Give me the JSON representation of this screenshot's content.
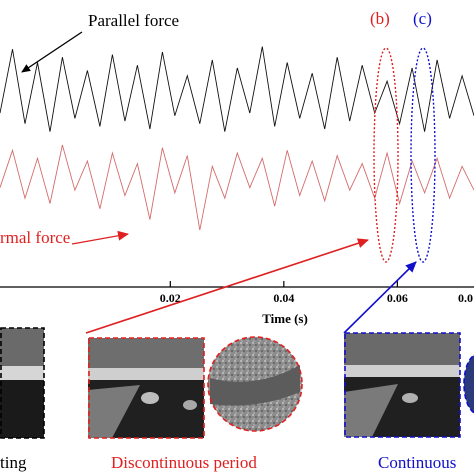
{
  "chart_data": {
    "type": "line",
    "title": "",
    "xlabel": "Time (s)",
    "ylabel": "",
    "xlim": [
      -0.01,
      0.0735
    ],
    "ylim": [
      0,
      1
    ],
    "x_ticks": [
      "0.02",
      "0.04",
      "0.06",
      "0.0"
    ],
    "series": [
      {
        "name": "Parallel force",
        "color": "#111111",
        "x": [
          -0.01,
          -0.0078,
          -0.0056,
          -0.0034,
          -0.0012,
          0.001,
          0.0032,
          0.0054,
          0.0076,
          0.0098,
          0.012,
          0.0142,
          0.0164,
          0.0186,
          0.0208,
          0.023,
          0.0252,
          0.0274,
          0.0296,
          0.0318,
          0.034,
          0.0362,
          0.0384,
          0.0406,
          0.0428,
          0.045,
          0.0472,
          0.0494,
          0.0516,
          0.0538,
          0.056,
          0.0582,
          0.0604,
          0.0626,
          0.0648,
          0.067,
          0.0692,
          0.0714,
          0.0735
        ],
        "values": [
          0.62,
          0.86,
          0.58,
          0.81,
          0.55,
          0.83,
          0.6,
          0.78,
          0.57,
          0.84,
          0.59,
          0.8,
          0.56,
          0.85,
          0.61,
          0.76,
          0.58,
          0.82,
          0.55,
          0.79,
          0.62,
          0.87,
          0.57,
          0.81,
          0.6,
          0.77,
          0.56,
          0.83,
          0.59,
          0.8,
          0.62,
          0.74,
          0.58,
          0.79,
          0.55,
          0.82,
          0.6,
          0.76,
          0.61
        ]
      },
      {
        "name": "Normal force",
        "color": "#d46b6b",
        "x": [
          -0.01,
          -0.0078,
          -0.0056,
          -0.0034,
          -0.0012,
          0.001,
          0.0032,
          0.0054,
          0.0076,
          0.0098,
          0.012,
          0.0142,
          0.0164,
          0.0186,
          0.0208,
          0.023,
          0.0252,
          0.0274,
          0.0296,
          0.0318,
          0.034,
          0.0362,
          0.0384,
          0.0406,
          0.0428,
          0.045,
          0.0472,
          0.0494,
          0.0516,
          0.0538,
          0.056,
          0.0582,
          0.0604,
          0.0626,
          0.0648,
          0.067,
          0.0692,
          0.0714,
          0.0735
        ],
        "values": [
          0.34,
          0.48,
          0.3,
          0.45,
          0.28,
          0.5,
          0.33,
          0.44,
          0.26,
          0.47,
          0.31,
          0.43,
          0.22,
          0.49,
          0.32,
          0.46,
          0.18,
          0.42,
          0.3,
          0.47,
          0.34,
          0.45,
          0.27,
          0.48,
          0.31,
          0.44,
          0.29,
          0.46,
          0.33,
          0.43,
          0.3,
          0.47,
          0.28,
          0.44,
          0.32,
          0.45,
          0.3,
          0.42,
          0.33
        ]
      }
    ],
    "annotations": {
      "parallel_label": "Parallel force",
      "normal_label": "rmal force",
      "b_label": "(b)",
      "c_label": "(c)"
    },
    "colors": {
      "red": "#e02020",
      "blue": "#1010cc",
      "axis": "#000000"
    }
  },
  "panels": {
    "left_caption": "ting",
    "middle_caption": "Discontinuous period",
    "right_caption": "Continuous"
  }
}
